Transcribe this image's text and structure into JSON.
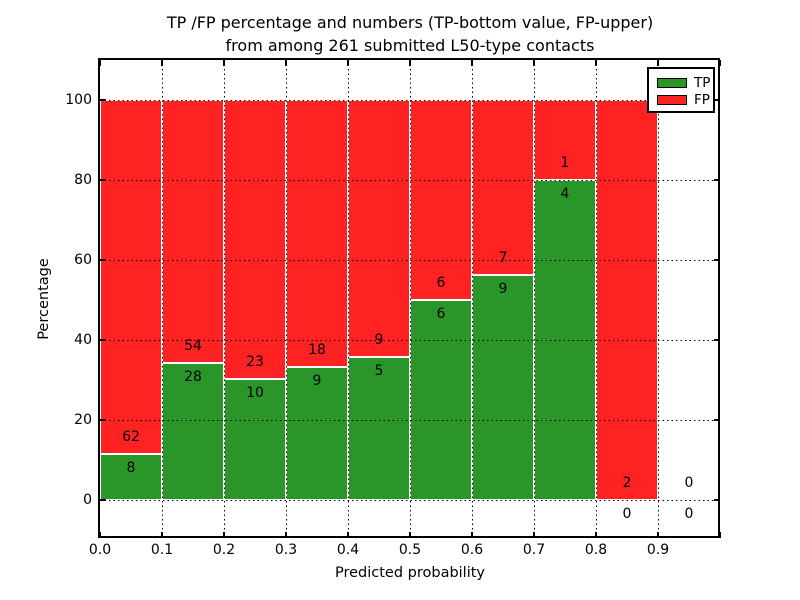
{
  "figure": {
    "title_line1": "TP /FP percentage and numbers (TP-bottom value, FP-upper)",
    "title_line2": "from among 261 submitted L50-type contacts"
  },
  "chart_data": {
    "type": "bar",
    "stacked": true,
    "normalized_to": 100,
    "title": "TP /FP percentage and numbers (TP-bottom value, FP-upper)\nfrom among 261 submitted L50-type contacts",
    "xlabel": "Predicted probability",
    "ylabel": "Percentage",
    "total_contacts": 261,
    "bin_width": 0.1,
    "x_bin_starts": [
      0.0,
      0.1,
      0.2,
      0.3,
      0.4,
      0.5,
      0.6,
      0.7,
      0.8,
      0.9
    ],
    "x_tick_labels": [
      "0.0",
      "0.1",
      "0.2",
      "0.3",
      "0.4",
      "0.5",
      "0.6",
      "0.7",
      "0.8",
      "0.9"
    ],
    "y_ticks": [
      0,
      20,
      40,
      60,
      80,
      100
    ],
    "y_tick_labels": [
      "0",
      "20",
      "40",
      "60",
      "80",
      "100"
    ],
    "xlim": [
      0.0,
      1.0
    ],
    "ylim": [
      -9.5,
      110
    ],
    "grid": {
      "style": "dotted",
      "color": "#000000",
      "axes": "both"
    },
    "bar_edge_color": "#ffffff",
    "legend": {
      "position": "upper-right",
      "entries": [
        {
          "label": "TP",
          "color": "#2a962a"
        },
        {
          "label": "FP",
          "color": "#ff2222"
        }
      ]
    },
    "series": [
      {
        "name": "TP",
        "position": "bottom",
        "color": "#2a962a",
        "counts": [
          8,
          28,
          10,
          9,
          5,
          6,
          9,
          4,
          0,
          0
        ]
      },
      {
        "name": "FP",
        "position": "top",
        "color": "#ff2222",
        "counts": [
          62,
          54,
          23,
          18,
          9,
          6,
          7,
          1,
          2,
          0
        ]
      }
    ],
    "tp_percent_of_bin": [
      11.4,
      34.1,
      30.3,
      33.3,
      35.7,
      50.0,
      56.2,
      80.0,
      0.0,
      null
    ]
  },
  "colors": {
    "background": "#ffffff",
    "axes": "#000000",
    "text": "#000000"
  }
}
